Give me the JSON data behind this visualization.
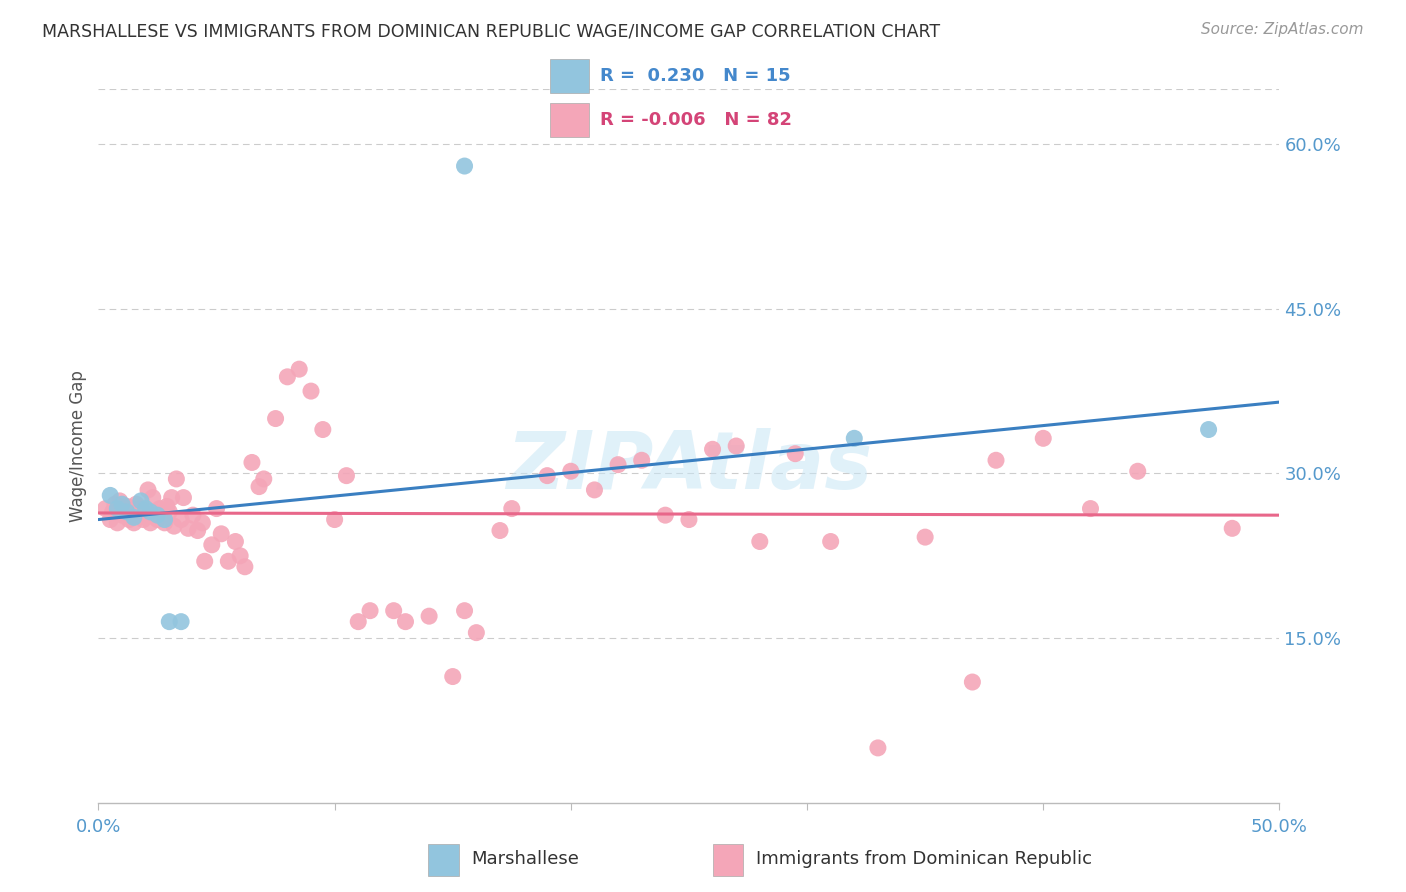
{
  "title": "MARSHALLESE VS IMMIGRANTS FROM DOMINICAN REPUBLIC WAGE/INCOME GAP CORRELATION CHART",
  "source": "Source: ZipAtlas.com",
  "ylabel": "Wage/Income Gap",
  "xlim": [
    0.0,
    0.5
  ],
  "ylim": [
    0.0,
    0.65
  ],
  "yticks_right": [
    0.15,
    0.3,
    0.45,
    0.6
  ],
  "ytick_labels_right": [
    "15.0%",
    "30.0%",
    "45.0%",
    "60.0%"
  ],
  "blue_color": "#92c5de",
  "pink_color": "#f4a6b8",
  "blue_line_color": "#3a7fc1",
  "pink_line_color": "#e8678a",
  "watermark": "ZIPAtlas",
  "legend_R_blue": "0.230",
  "legend_N_blue": "15",
  "legend_R_pink": "-0.006",
  "legend_N_pink": "82",
  "blue_scatter_x": [
    0.005,
    0.008,
    0.01,
    0.012,
    0.015,
    0.018,
    0.02,
    0.022,
    0.025,
    0.028,
    0.03,
    0.035,
    0.155,
    0.32,
    0.47
  ],
  "blue_scatter_y": [
    0.28,
    0.268,
    0.272,
    0.265,
    0.26,
    0.275,
    0.268,
    0.265,
    0.262,
    0.258,
    0.165,
    0.165,
    0.58,
    0.332,
    0.34
  ],
  "pink_scatter_x": [
    0.003,
    0.005,
    0.006,
    0.007,
    0.008,
    0.009,
    0.01,
    0.012,
    0.013,
    0.014,
    0.015,
    0.016,
    0.018,
    0.019,
    0.02,
    0.021,
    0.022,
    0.023,
    0.024,
    0.025,
    0.026,
    0.027,
    0.028,
    0.029,
    0.03,
    0.031,
    0.032,
    0.033,
    0.035,
    0.036,
    0.038,
    0.04,
    0.042,
    0.044,
    0.045,
    0.048,
    0.05,
    0.052,
    0.055,
    0.058,
    0.06,
    0.062,
    0.065,
    0.068,
    0.07,
    0.075,
    0.08,
    0.085,
    0.09,
    0.095,
    0.1,
    0.105,
    0.11,
    0.115,
    0.125,
    0.13,
    0.14,
    0.15,
    0.155,
    0.16,
    0.17,
    0.175,
    0.19,
    0.2,
    0.21,
    0.22,
    0.23,
    0.24,
    0.25,
    0.26,
    0.27,
    0.28,
    0.295,
    0.31,
    0.33,
    0.35,
    0.37,
    0.38,
    0.4,
    0.42,
    0.44,
    0.48
  ],
  "pink_scatter_y": [
    0.268,
    0.258,
    0.265,
    0.272,
    0.255,
    0.275,
    0.262,
    0.27,
    0.258,
    0.268,
    0.255,
    0.272,
    0.268,
    0.258,
    0.262,
    0.285,
    0.255,
    0.278,
    0.265,
    0.258,
    0.268,
    0.262,
    0.255,
    0.27,
    0.265,
    0.278,
    0.252,
    0.295,
    0.258,
    0.278,
    0.25,
    0.262,
    0.248,
    0.255,
    0.22,
    0.235,
    0.268,
    0.245,
    0.22,
    0.238,
    0.225,
    0.215,
    0.31,
    0.288,
    0.295,
    0.35,
    0.388,
    0.395,
    0.375,
    0.34,
    0.258,
    0.298,
    0.165,
    0.175,
    0.175,
    0.165,
    0.17,
    0.115,
    0.175,
    0.155,
    0.248,
    0.268,
    0.298,
    0.302,
    0.285,
    0.308,
    0.312,
    0.262,
    0.258,
    0.322,
    0.325,
    0.238,
    0.318,
    0.238,
    0.05,
    0.242,
    0.11,
    0.312,
    0.332,
    0.268,
    0.302,
    0.25
  ],
  "blue_line_x0": 0.0,
  "blue_line_y0": 0.258,
  "blue_line_x1": 0.5,
  "blue_line_y1": 0.365,
  "pink_line_x0": 0.0,
  "pink_line_y0": 0.264,
  "pink_line_x1": 0.5,
  "pink_line_y1": 0.262
}
